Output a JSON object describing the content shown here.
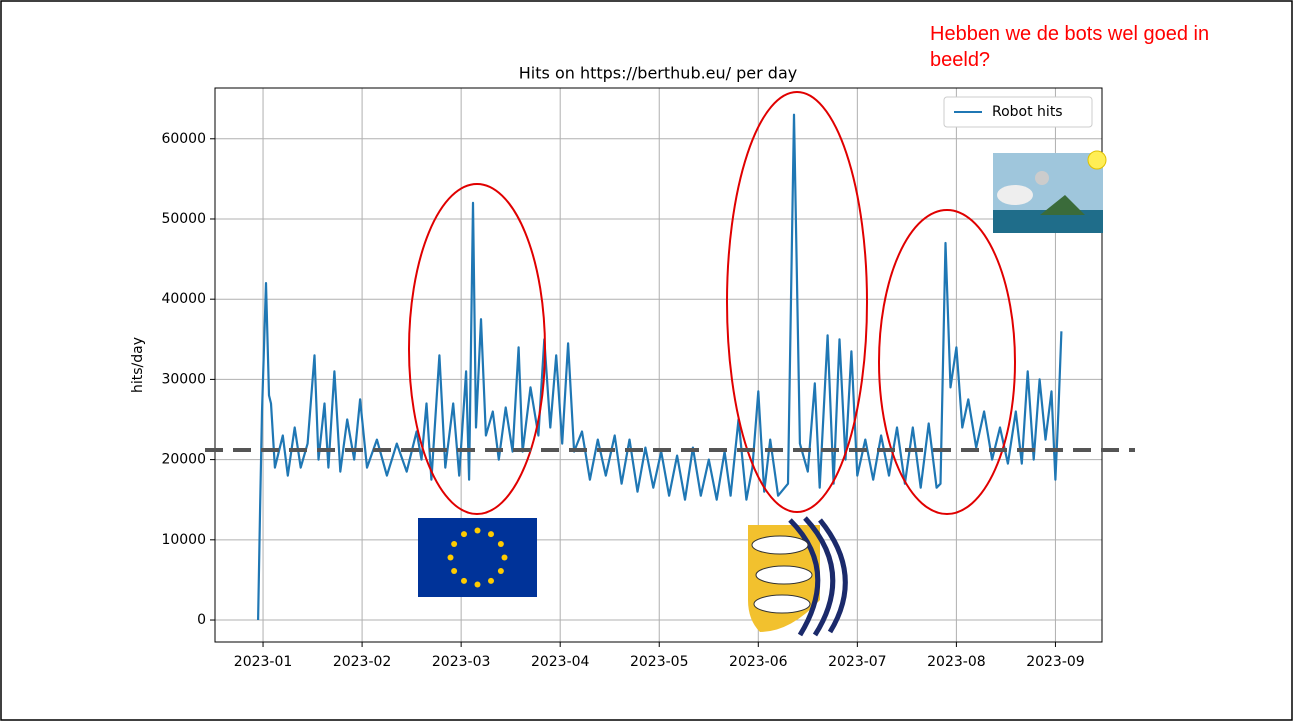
{
  "slide_title": "Hebben we de bots wel goed in beeld?",
  "chart_data": {
    "type": "line",
    "title": "Hits on https://berthub.eu/ per day",
    "y_label": "hits/day",
    "legend": "upper right",
    "grid": true,
    "xlim": [
      0.515,
      9.47
    ],
    "ylim": [
      -2740,
      66330
    ],
    "xticks": [
      {
        "value": 1,
        "label": "2023-01"
      },
      {
        "value": 2,
        "label": "2023-02"
      },
      {
        "value": 3,
        "label": "2023-03"
      },
      {
        "value": 4,
        "label": "2023-04"
      },
      {
        "value": 5,
        "label": "2023-05"
      },
      {
        "value": 6,
        "label": "2023-06"
      },
      {
        "value": 7,
        "label": "2023-07"
      },
      {
        "value": 8,
        "label": "2023-08"
      },
      {
        "value": 9,
        "label": "2023-09"
      }
    ],
    "yticks": [
      0,
      10000,
      20000,
      30000,
      40000,
      50000,
      60000
    ],
    "reference_line": 21200,
    "x": [
      0.95,
      0.97,
      0.99,
      1.03,
      1.06,
      1.08,
      1.12,
      1.2,
      1.25,
      1.32,
      1.38,
      1.45,
      1.52,
      1.56,
      1.62,
      1.66,
      1.72,
      1.78,
      1.85,
      1.92,
      1.98,
      2.05,
      2.15,
      2.25,
      2.35,
      2.45,
      2.55,
      2.6,
      2.65,
      2.7,
      2.78,
      2.84,
      2.92,
      2.98,
      3.05,
      3.08,
      3.12,
      3.15,
      3.2,
      3.25,
      3.32,
      3.38,
      3.45,
      3.52,
      3.58,
      3.62,
      3.7,
      3.78,
      3.84,
      3.9,
      3.96,
      4.02,
      4.08,
      4.14,
      4.22,
      4.3,
      4.38,
      4.46,
      4.55,
      4.62,
      4.7,
      4.78,
      4.86,
      4.94,
      5.02,
      5.1,
      5.18,
      5.26,
      5.34,
      5.42,
      5.5,
      5.58,
      5.66,
      5.72,
      5.8,
      5.88,
      5.94,
      6.0,
      6.06,
      6.12,
      6.2,
      6.3,
      6.36,
      6.42,
      6.5,
      6.57,
      6.62,
      6.7,
      6.76,
      6.82,
      6.88,
      6.94,
      7.0,
      7.08,
      7.16,
      7.24,
      7.32,
      7.4,
      7.48,
      7.56,
      7.64,
      7.72,
      7.8,
      7.84,
      7.89,
      7.94,
      8.0,
      8.06,
      8.12,
      8.2,
      8.28,
      8.36,
      8.44,
      8.52,
      8.6,
      8.66,
      8.72,
      8.78,
      8.84,
      8.9,
      8.96,
      9.0,
      9.03,
      9.06
    ],
    "series": [
      {
        "name": "Robot hits",
        "color": "#1f77b4",
        "values": [
          0,
          14000,
          26000,
          42000,
          28000,
          27000,
          19000,
          23000,
          18000,
          24000,
          19000,
          22000,
          33000,
          20000,
          27000,
          19000,
          31000,
          18500,
          25000,
          20000,
          27500,
          19000,
          22500,
          18000,
          22000,
          18500,
          23500,
          20000,
          27000,
          17500,
          33000,
          19000,
          27000,
          18000,
          31000,
          17500,
          52000,
          24000,
          37500,
          23000,
          26000,
          20000,
          26500,
          21000,
          34000,
          21000,
          29000,
          23000,
          35000,
          24000,
          33000,
          22000,
          34500,
          21000,
          23500,
          17500,
          22500,
          18000,
          23000,
          17000,
          22500,
          16000,
          21500,
          16500,
          21000,
          15500,
          20500,
          15000,
          21500,
          15500,
          20000,
          15000,
          21000,
          15500,
          25000,
          15000,
          19000,
          28500,
          16000,
          22500,
          15500,
          17000,
          63000,
          22000,
          18500,
          29500,
          16500,
          35500,
          17000,
          35000,
          20000,
          33500,
          18000,
          22500,
          17500,
          23000,
          18000,
          24000,
          17000,
          24000,
          16500,
          24500,
          16500,
          17000,
          47000,
          29000,
          34000,
          24000,
          27500,
          21500,
          26000,
          20000,
          24000,
          19500,
          26000,
          19500,
          31000,
          20000,
          30000,
          22500,
          28500,
          17500,
          26000,
          36000
        ]
      }
    ]
  }
}
